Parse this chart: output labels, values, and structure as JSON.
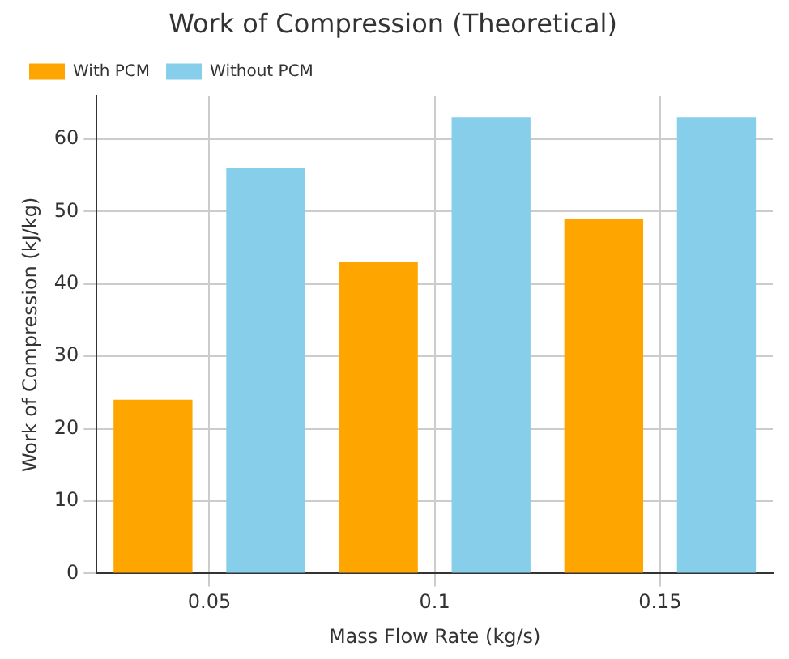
{
  "chart_data": {
    "type": "bar",
    "title": "Work of Compression (Theoretical)",
    "xlabel": "Mass Flow Rate (kg/s)",
    "ylabel": "Work of Compression (kJ/kg)",
    "categories": [
      "0.05",
      "0.1",
      "0.15"
    ],
    "series": [
      {
        "name": "With PCM",
        "color": "#ffa500",
        "values": [
          24,
          43,
          49
        ]
      },
      {
        "name": "Without PCM",
        "color": "#87ceeb",
        "values": [
          56,
          63,
          63
        ]
      }
    ],
    "ylim": [
      0,
      66
    ],
    "yticks": [
      0,
      10,
      20,
      30,
      40,
      50,
      60
    ],
    "grid": true,
    "legend": "top left"
  }
}
